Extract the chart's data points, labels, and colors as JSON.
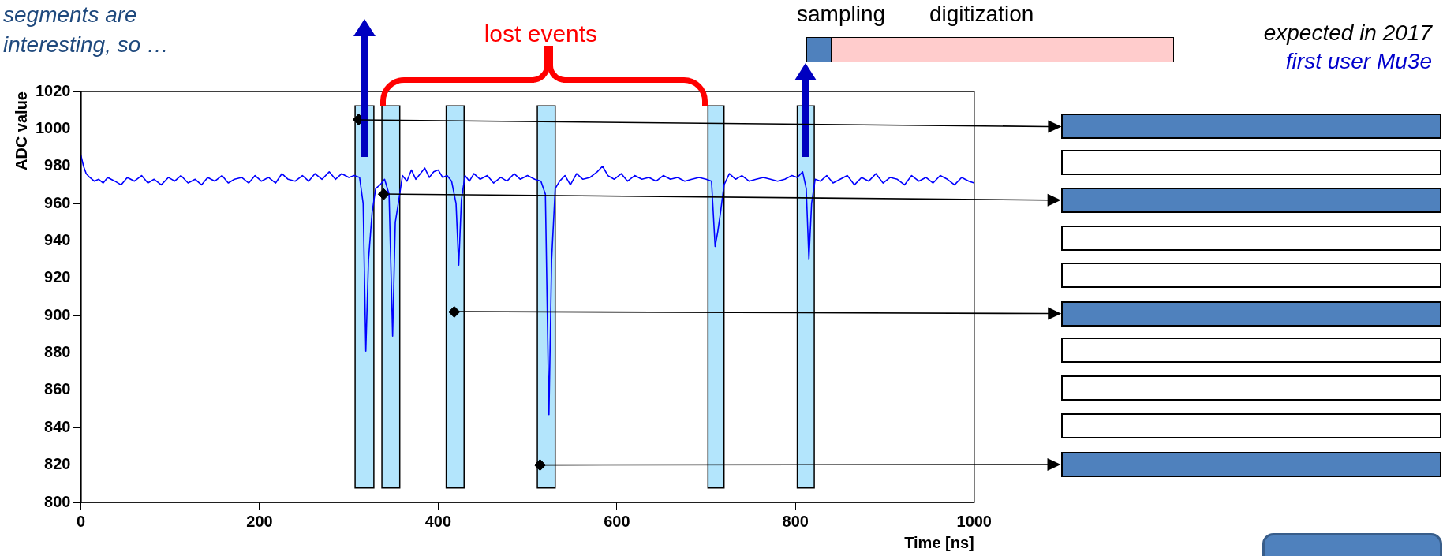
{
  "chart_data": {
    "type": "line",
    "xlabel": "Time [ns]",
    "ylabel": "ADC value",
    "xlim": [
      0,
      1000
    ],
    "xticks": [
      0,
      200,
      400,
      600,
      800,
      1000
    ],
    "ylim": [
      800,
      1020
    ],
    "yticks": [
      800,
      820,
      840,
      860,
      880,
      900,
      920,
      940,
      960,
      980,
      1000,
      1020
    ],
    "grid": false,
    "legend": false,
    "series": [
      {
        "color": "#0000ff",
        "x": [
          0,
          3,
          6,
          10,
          15,
          20,
          25,
          30,
          38,
          45,
          52,
          60,
          68,
          75,
          82,
          90,
          98,
          105,
          112,
          120,
          128,
          135,
          142,
          150,
          158,
          165,
          172,
          180,
          188,
          195,
          202,
          210,
          218,
          225,
          232,
          240,
          248,
          255,
          262,
          270,
          278,
          285,
          292,
          300,
          306,
          312,
          316,
          319,
          322,
          326,
          330,
          335,
          340,
          345,
          349,
          352,
          356,
          360,
          365,
          370,
          375,
          380,
          385,
          390,
          395,
          400,
          405,
          410,
          415,
          420,
          423,
          426,
          430,
          435,
          440,
          447,
          455,
          462,
          470,
          477,
          485,
          492,
          500,
          508,
          515,
          520,
          524,
          527,
          531,
          536,
          542,
          548,
          555,
          562,
          570,
          578,
          584,
          590,
          597,
          605,
          612,
          620,
          628,
          636,
          644,
          652,
          660,
          668,
          676,
          684,
          692,
          700,
          706,
          710,
          713,
          716,
          720,
          726,
          733,
          740,
          748,
          756,
          764,
          772,
          780,
          788,
          796,
          802,
          808,
          812,
          815,
          818,
          822,
          828,
          835,
          842,
          850,
          858,
          866,
          874,
          882,
          890,
          898,
          906,
          914,
          922,
          930,
          938,
          946,
          954,
          962,
          970,
          978,
          986,
          994,
          1000
        ],
        "values": [
          986,
          980,
          976,
          974,
          972,
          973,
          971,
          974,
          972,
          970,
          974,
          972,
          975,
          971,
          973,
          970,
          974,
          972,
          975,
          971,
          973,
          970,
          974,
          972,
          975,
          971,
          973,
          974,
          971,
          975,
          972,
          974,
          971,
          976,
          973,
          972,
          975,
          972,
          976,
          973,
          977,
          973,
          976,
          974,
          975,
          974,
          960,
          881,
          930,
          955,
          968,
          970,
          973,
          965,
          889,
          950,
          962,
          975,
          972,
          978,
          973,
          976,
          979,
          974,
          977,
          978,
          974,
          975,
          972,
          960,
          927,
          962,
          975,
          972,
          976,
          973,
          975,
          971,
          974,
          972,
          976,
          973,
          975,
          973,
          972,
          965,
          847,
          930,
          968,
          972,
          975,
          970,
          976,
          973,
          974,
          977,
          980,
          975,
          973,
          976,
          972,
          975,
          973,
          974,
          972,
          975,
          973,
          974,
          972,
          973,
          974,
          973,
          972,
          937,
          945,
          955,
          970,
          976,
          973,
          975,
          972,
          973,
          974,
          973,
          972,
          973,
          975,
          974,
          977,
          968,
          930,
          960,
          973,
          972,
          975,
          971,
          973,
          975,
          970,
          974,
          972,
          976,
          971,
          974,
          973,
          970,
          975,
          972,
          974,
          971,
          975,
          973,
          970,
          974,
          972,
          971
        ]
      },
      {
        "type": "scatter",
        "color": "#000000",
        "marker": "diamond",
        "x": [
          311,
          339,
          418,
          514
        ],
        "values": [
          1005,
          965,
          902,
          820
        ]
      }
    ],
    "bands": [
      {
        "axis": "x",
        "from": 307,
        "to": 328,
        "color": "#b3e5fc"
      },
      {
        "axis": "x",
        "from": 337,
        "to": 357,
        "color": "#b3e5fc"
      },
      {
        "axis": "x",
        "from": 409,
        "to": 429,
        "color": "#b3e5fc"
      },
      {
        "axis": "x",
        "from": 511,
        "to": 531,
        "color": "#b3e5fc"
      },
      {
        "axis": "x",
        "from": 702,
        "to": 720,
        "color": "#b3e5fc"
      },
      {
        "axis": "x",
        "from": 802,
        "to": 821,
        "color": "#b3e5fc"
      }
    ],
    "annotations": [
      "segments are interesting, so …",
      "lost events",
      "sampling",
      "digitization",
      "expected in 2017",
      "first user Mu3e"
    ]
  }
}
